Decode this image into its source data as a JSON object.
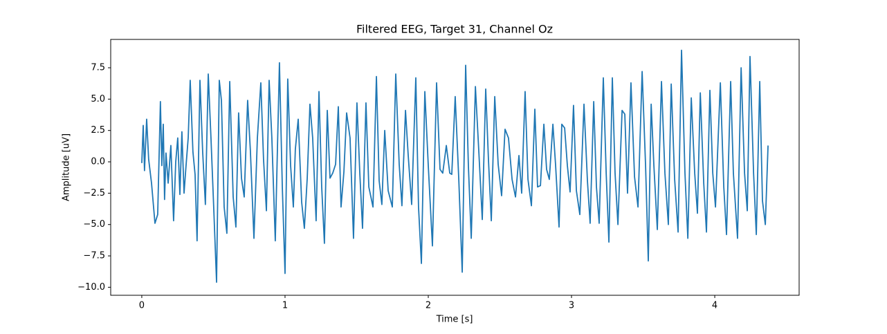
{
  "chart_data": {
    "type": "line",
    "title": "Filtered EEG, Target 31, Channel Oz",
    "xlabel": "Time [s]",
    "ylabel": "Amplitude [uV]",
    "xlim": [
      -0.217,
      4.589
    ],
    "ylim": [
      -10.64,
      9.76
    ],
    "xticks": [
      0,
      1,
      2,
      3,
      4
    ],
    "yticks": [
      {
        "value": -10,
        "label": "−10.0"
      },
      {
        "value": -7.5,
        "label": "−7.5"
      },
      {
        "value": -5,
        "label": "−5.0"
      },
      {
        "value": -2.5,
        "label": "−2.5"
      },
      {
        "value": 0,
        "label": "0.0"
      },
      {
        "value": 2.5,
        "label": "2.5"
      },
      {
        "value": 5,
        "label": "5.0"
      },
      {
        "value": 7.5,
        "label": "7.5"
      }
    ],
    "grid": false,
    "x": [
      0,
      0.01,
      0.019,
      0.034,
      0.048,
      0.068,
      0.092,
      0.111,
      0.13,
      0.14,
      0.15,
      0.159,
      0.169,
      0.184,
      0.203,
      0.222,
      0.237,
      0.251,
      0.266,
      0.28,
      0.295,
      0.309,
      0.324,
      0.338,
      0.357,
      0.372,
      0.386,
      0.406,
      0.425,
      0.444,
      0.464,
      0.483,
      0.502,
      0.522,
      0.541,
      0.556,
      0.575,
      0.594,
      0.614,
      0.638,
      0.657,
      0.676,
      0.696,
      0.715,
      0.739,
      0.758,
      0.783,
      0.807,
      0.831,
      0.85,
      0.87,
      0.889,
      0.908,
      0.932,
      0.961,
      0.981,
      1.0,
      1.019,
      1.039,
      1.058,
      1.072,
      1.092,
      1.116,
      1.135,
      1.155,
      1.174,
      1.193,
      1.217,
      1.237,
      1.256,
      1.275,
      1.295,
      1.314,
      1.333,
      1.353,
      1.372,
      1.391,
      1.411,
      1.43,
      1.454,
      1.478,
      1.502,
      1.522,
      1.541,
      1.565,
      1.585,
      1.614,
      1.638,
      1.657,
      1.676,
      1.696,
      1.72,
      1.749,
      1.773,
      1.797,
      1.816,
      1.841,
      1.86,
      1.884,
      1.913,
      1.932,
      1.952,
      1.976,
      2.0,
      2.029,
      2.058,
      2.082,
      2.101,
      2.126,
      2.15,
      2.164,
      2.188,
      2.213,
      2.237,
      2.261,
      2.28,
      2.3,
      2.329,
      2.353,
      2.377,
      2.401,
      2.42,
      2.44,
      2.464,
      2.488,
      2.512,
      2.536,
      2.56,
      2.585,
      2.609,
      2.633,
      2.652,
      2.676,
      2.696,
      2.72,
      2.744,
      2.763,
      2.783,
      2.807,
      2.826,
      2.845,
      2.87,
      2.889,
      2.913,
      2.932,
      2.952,
      2.971,
      2.99,
      3.014,
      3.034,
      3.058,
      3.087,
      3.111,
      3.13,
      3.155,
      3.174,
      3.193,
      3.222,
      3.242,
      3.261,
      3.285,
      3.304,
      3.324,
      3.353,
      3.372,
      3.391,
      3.415,
      3.44,
      3.464,
      3.493,
      3.517,
      3.536,
      3.556,
      3.575,
      3.599,
      3.628,
      3.652,
      3.676,
      3.696,
      3.72,
      3.744,
      3.768,
      3.792,
      3.812,
      3.836,
      3.86,
      3.879,
      3.899,
      3.923,
      3.942,
      3.966,
      3.986,
      4.005,
      4.039,
      4.063,
      4.082,
      4.111,
      4.13,
      4.159,
      4.184,
      4.208,
      4.227,
      4.246,
      4.271,
      4.29,
      4.314,
      4.333,
      4.353,
      4.372
    ],
    "series": [
      {
        "color": "#1f77b4",
        "values": [
          -0.1,
          2.9,
          -0.7,
          3.4,
          0.2,
          -1.7,
          -4.9,
          -4.2,
          4.8,
          -0.3,
          3.0,
          -3.0,
          0.7,
          -1.7,
          1.3,
          -4.7,
          0,
          1.9,
          -2.6,
          2.4,
          -2.5,
          -0.3,
          1.9,
          6.5,
          0.8,
          -1.0,
          -6.3,
          6.5,
          0.8,
          -3.4,
          7.0,
          1.9,
          -3.6,
          -9.6,
          6.5,
          4.9,
          -3.6,
          -5.7,
          6.4,
          -2.8,
          -5.2,
          3.9,
          -1.3,
          -2.8,
          4.9,
          0.9,
          -6.1,
          1.9,
          6.3,
          0.2,
          -3.9,
          6.5,
          1.9,
          -6.3,
          7.9,
          -2.0,
          -8.9,
          6.6,
          -0.3,
          -3.6,
          1.0,
          3.4,
          -3.2,
          -5.3,
          -1.3,
          4.6,
          1.9,
          -4.7,
          5.6,
          -2.0,
          -6.5,
          4.1,
          -1.3,
          -0.9,
          -0.2,
          4.4,
          -3.6,
          -0.8,
          3.9,
          1.9,
          -6.1,
          4.7,
          -0.9,
          -5.3,
          4.7,
          -2.0,
          -3.6,
          6.8,
          -1.5,
          -3.4,
          2.5,
          -2.3,
          -3.6,
          7.0,
          -0.2,
          -3.5,
          4.1,
          0.5,
          -3.4,
          6.7,
          -3.6,
          -8.1,
          5.6,
          -0.3,
          -6.7,
          6.3,
          -0.6,
          -0.9,
          1.3,
          -0.9,
          -1.0,
          5.2,
          -1.4,
          -8.8,
          7.7,
          -0.3,
          -6.1,
          6.0,
          0.8,
          -4.6,
          5.8,
          0.2,
          -4.7,
          5.2,
          -0.2,
          -2.7,
          2.6,
          1.9,
          -1.4,
          -2.8,
          0.5,
          -2.5,
          5.6,
          -1.4,
          -3.5,
          4.2,
          -2.0,
          -1.9,
          3.0,
          -0.6,
          -1.4,
          3.0,
          -0.3,
          -5.2,
          3.0,
          2.7,
          -0.3,
          -2.4,
          4.5,
          -2.3,
          -4.2,
          4.6,
          -1.5,
          -4.9,
          4.8,
          -2.0,
          -4.9,
          6.7,
          -0.9,
          -6.4,
          6.7,
          -0.9,
          -5.0,
          4.1,
          3.8,
          -2.5,
          6.3,
          -1.2,
          -3.6,
          7.2,
          -0.3,
          -7.9,
          4.6,
          -0.3,
          -5.4,
          6.4,
          -0.9,
          -5.0,
          6.2,
          -1.4,
          -5.6,
          8.9,
          -0.9,
          -6.1,
          5.1,
          -0.9,
          -4.1,
          5.5,
          -1.7,
          -5.6,
          5.7,
          -0.9,
          -3.6,
          6.3,
          -2.0,
          -5.8,
          6.4,
          -0.9,
          -6.1,
          7.5,
          -0.9,
          -3.9,
          8.4,
          -0.9,
          -5.8,
          6.4,
          -3.1,
          -5.0,
          1.3
        ]
      }
    ]
  }
}
